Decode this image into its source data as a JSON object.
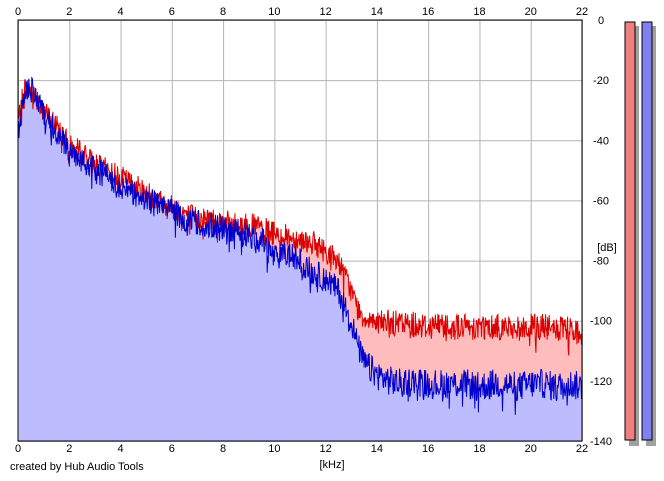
{
  "credit": "created by Hub Audio Tools",
  "chart_data": {
    "type": "area",
    "xlabel": "[kHz]",
    "ylabel": "[dB]",
    "xlim": [
      0,
      22
    ],
    "ylim": [
      -140,
      0
    ],
    "x_ticks": [
      0,
      2,
      4,
      6,
      8,
      10,
      12,
      14,
      16,
      18,
      20,
      22
    ],
    "y_ticks": [
      0,
      -20,
      -40,
      -60,
      -80,
      -100,
      -120,
      -140
    ],
    "grid": true,
    "colors": {
      "background": "#ffffff",
      "grid": "#b4b4b4",
      "axis": "#000000",
      "red_line": "#dd0000",
      "red_fill": "#ffbcbc",
      "blue_line": "#0000cc",
      "blue_fill": "#bcbcff"
    },
    "series": [
      {
        "color": "red",
        "x": [
          0,
          0.25,
          0.5,
          0.75,
          1,
          1.25,
          1.5,
          1.75,
          2,
          2.5,
          3,
          3.5,
          4,
          4.5,
          5,
          5.5,
          6,
          6.5,
          7,
          7.5,
          8,
          8.5,
          9,
          9.5,
          10,
          10.5,
          11,
          11.5,
          12,
          12.5,
          13,
          13.25,
          13.5,
          13.75,
          14,
          14.5,
          15,
          15.5,
          16,
          16.5,
          17,
          17.5,
          18,
          18.5,
          19,
          19.5,
          20,
          20.5,
          21,
          21.5,
          22
        ],
        "y": [
          -34,
          -22,
          -24,
          -26,
          -30,
          -33,
          -35,
          -38,
          -42,
          -44,
          -48,
          -50,
          -52,
          -55,
          -57,
          -60,
          -62,
          -64,
          -66,
          -66,
          -67,
          -68,
          -68,
          -69,
          -71,
          -72,
          -73,
          -74,
          -77,
          -80,
          -90,
          -96,
          -99,
          -99,
          -100,
          -101,
          -101,
          -101,
          -102,
          -101,
          -102,
          -102,
          -102,
          -102,
          -102,
          -103,
          -102,
          -102,
          -103,
          -103,
          -104
        ]
      },
      {
        "color": "blue",
        "x": [
          0,
          0.25,
          0.5,
          0.75,
          1,
          1.25,
          1.5,
          1.75,
          2,
          2.5,
          3,
          3.5,
          4,
          4.5,
          5,
          5.5,
          6,
          6.5,
          7,
          7.5,
          8,
          8.5,
          9,
          9.5,
          10,
          10.5,
          11,
          11.5,
          12,
          12.5,
          13,
          13.25,
          13.5,
          13.75,
          14,
          14.5,
          15,
          15.5,
          16,
          16.5,
          17,
          17.5,
          18,
          18.5,
          19,
          19.5,
          20,
          20.5,
          21,
          21.5,
          22
        ],
        "y": [
          -38,
          -24,
          -23,
          -26,
          -32,
          -34,
          -38,
          -40,
          -45,
          -47,
          -50,
          -52,
          -55,
          -58,
          -59,
          -62,
          -63,
          -66,
          -67,
          -68,
          -70,
          -70,
          -72,
          -73,
          -79,
          -78,
          -80,
          -84,
          -86,
          -90,
          -100,
          -108,
          -114,
          -116,
          -118,
          -120,
          -121,
          -120,
          -121,
          -121,
          -121,
          -121,
          -122,
          -121,
          -121,
          -122,
          -121,
          -121,
          -122,
          -121,
          -122
        ]
      }
    ]
  }
}
